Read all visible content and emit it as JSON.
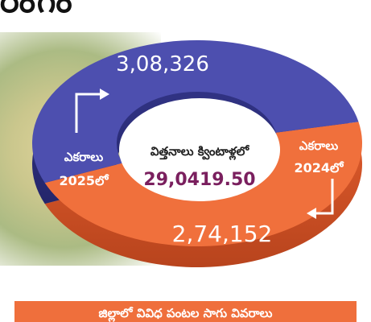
{
  "headline": "రంగం",
  "banner": "జిల్లాలో వివిధ పంటల సాగు వివరాలు",
  "chart_data": {
    "type": "pie",
    "style": "donut-3d",
    "center_label": "విత్తనాలు క్వింటాళ్లలో",
    "center_value": "29,0419.50",
    "slices": [
      {
        "category_line1": "ఎకరాలు",
        "category_line2": "2025లో",
        "value": 308326,
        "value_label": "3,08,326",
        "color": "#4d4faf"
      },
      {
        "category_line1": "ఎకరాలు",
        "category_line2": "2024లో",
        "value": 274152,
        "value_label": "2,74,152",
        "color": "#f0703c"
      }
    ]
  }
}
